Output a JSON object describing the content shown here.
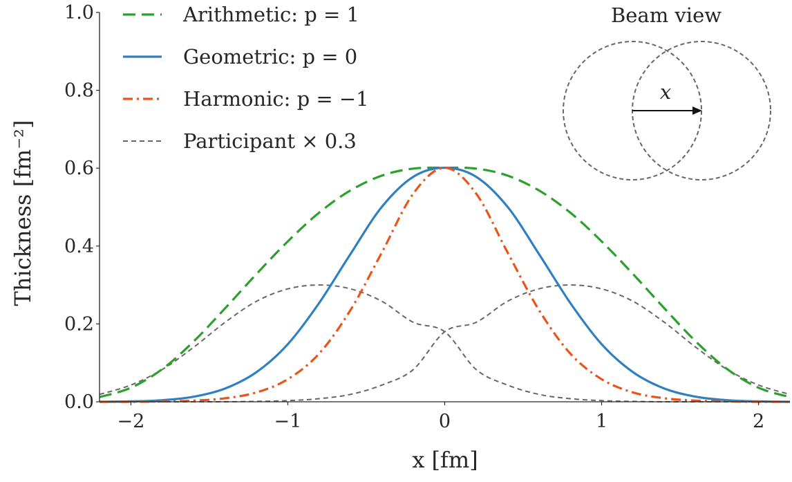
{
  "chart_data": {
    "type": "line",
    "xlabel": "x [fm]",
    "ylabel": "Thickness [fm⁻²]",
    "xlim": [
      -2.2,
      2.2
    ],
    "ylim": [
      0.0,
      1.0
    ],
    "x_ticks": [
      {
        "value": -2,
        "label": "−2"
      },
      {
        "value": -1,
        "label": "−1"
      },
      {
        "value": 0,
        "label": "0"
      },
      {
        "value": 1,
        "label": "1"
      },
      {
        "value": 2,
        "label": "2"
      }
    ],
    "y_ticks": [
      {
        "value": 0.0,
        "label": "0.0"
      },
      {
        "value": 0.2,
        "label": "0.2"
      },
      {
        "value": 0.4,
        "label": "0.4"
      },
      {
        "value": 0.6,
        "label": "0.6"
      },
      {
        "value": 0.8,
        "label": "0.8"
      },
      {
        "value": 1.0,
        "label": "1.0"
      }
    ],
    "grid": false,
    "legend_position": "top-left",
    "x": [
      -2.2,
      -2.0,
      -1.8,
      -1.6,
      -1.4,
      -1.2,
      -1.0,
      -0.8,
      -0.6,
      -0.4,
      -0.2,
      0.0,
      0.2,
      0.4,
      0.6,
      0.8,
      1.0,
      1.2,
      1.4,
      1.6,
      1.8,
      2.0,
      2.2
    ],
    "series": [
      {
        "name": "Arithmetic: p = 1",
        "color": "#2ca02c",
        "style": "dashed",
        "values": [
          0.012,
          0.036,
          0.084,
          0.155,
          0.24,
          0.328,
          0.412,
          0.486,
          0.543,
          0.581,
          0.599,
          0.601,
          0.599,
          0.581,
          0.543,
          0.486,
          0.412,
          0.328,
          0.24,
          0.155,
          0.084,
          0.036,
          0.012
        ]
      },
      {
        "name": "Geometric: p = 0",
        "color": "#2f7fc1",
        "style": "solid",
        "values": [
          0.0,
          0.001,
          0.004,
          0.013,
          0.034,
          0.076,
          0.148,
          0.254,
          0.38,
          0.501,
          0.578,
          0.601,
          0.578,
          0.501,
          0.38,
          0.254,
          0.148,
          0.076,
          0.034,
          0.013,
          0.004,
          0.001,
          0.0
        ]
      },
      {
        "name": "Harmonic: p = −1",
        "color": "#e8541a",
        "style": "dashdot",
        "values": [
          0.0,
          0.0,
          0.001,
          0.003,
          0.009,
          0.024,
          0.058,
          0.124,
          0.236,
          0.384,
          0.535,
          0.601,
          0.535,
          0.384,
          0.236,
          0.124,
          0.058,
          0.024,
          0.009,
          0.003,
          0.001,
          0.0,
          0.0
        ]
      },
      {
        "name": "Participant × 0.3 (left)",
        "legend": false,
        "color": "#666666",
        "style": "dotted",
        "values": [
          0.019,
          0.043,
          0.083,
          0.14,
          0.204,
          0.258,
          0.29,
          0.3,
          0.29,
          0.258,
          0.204,
          0.18,
          0.083,
          0.043,
          0.019,
          0.008,
          0.003,
          0.001,
          0.0,
          0.0,
          0.0,
          0.0,
          0.0
        ]
      },
      {
        "name": "Participant × 0.3 (right)",
        "legend": false,
        "color": "#666666",
        "style": "dotted",
        "values": [
          0.0,
          0.0,
          0.0,
          0.0,
          0.0,
          0.001,
          0.003,
          0.008,
          0.019,
          0.043,
          0.083,
          0.18,
          0.204,
          0.258,
          0.29,
          0.3,
          0.29,
          0.258,
          0.204,
          0.14,
          0.083,
          0.043,
          0.019
        ]
      }
    ],
    "legend": [
      {
        "label": "Arithmetic: p = 1",
        "color": "#2ca02c",
        "style": "dashed"
      },
      {
        "label": "Geometric: p = 0",
        "color": "#2f7fc1",
        "style": "solid"
      },
      {
        "label": "Harmonic: p = −1",
        "color": "#e8541a",
        "style": "dashdot"
      },
      {
        "label": "Participant × 0.3",
        "color": "#666666",
        "style": "dotted"
      }
    ],
    "inset": {
      "title": "Beam view",
      "arrow_label": "x"
    }
  }
}
